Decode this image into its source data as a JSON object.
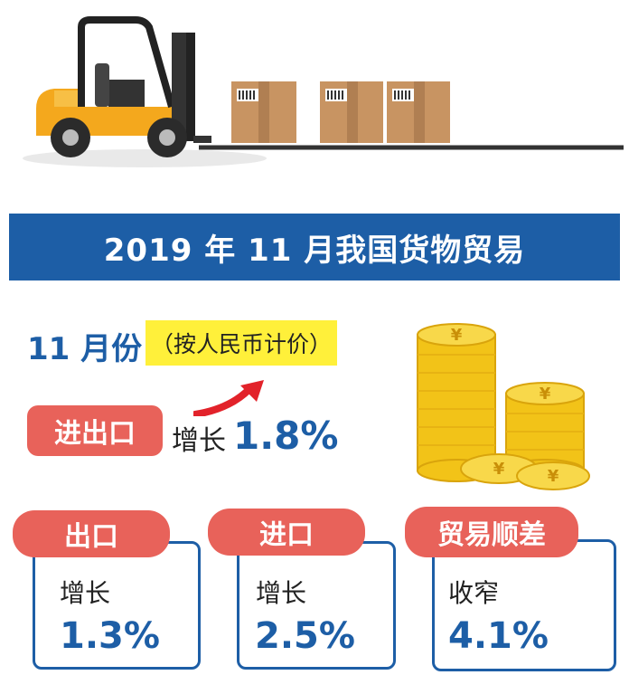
{
  "banner": {
    "title": "2019 年 11 月我国货物贸易"
  },
  "period": {
    "month": "11 月份",
    "note": "（按人民币计价）"
  },
  "trade": {
    "label": "进出口",
    "word": "增长",
    "value": "1.8%"
  },
  "cards": [
    {
      "label": "出口",
      "word": "增长",
      "value": "1.3%"
    },
    {
      "label": "进口",
      "word": "增长",
      "value": "2.5%"
    },
    {
      "label": "贸易顺差",
      "word": "收窄",
      "value": "4.1%"
    }
  ],
  "colors": {
    "primary": "#1d5ea6",
    "accent": "#e8625a",
    "highlight": "#fff03a",
    "gold": "#f2c318"
  },
  "icons": [
    "forklift-icon",
    "cardboard-box-icon",
    "up-trend-arrow-icon",
    "gold-coin-stack-icon"
  ]
}
